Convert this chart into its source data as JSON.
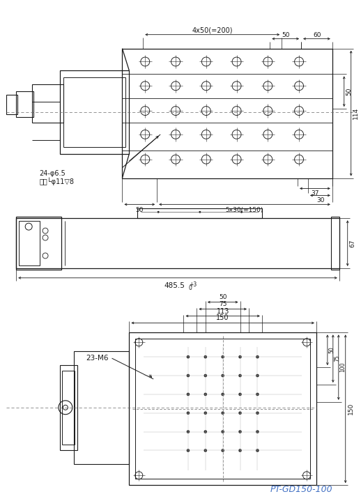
{
  "bg_color": "#ffffff",
  "line_color": "#1a1a1a",
  "model_color": "#4472c4",
  "model_text": "PT-GD150-100",
  "dim_4x50": "4x50(=200)",
  "dim_50a": "50",
  "dim_60": "60",
  "dim_114": "114",
  "dim_50b": "50",
  "dim_37": "37",
  "dim_30": "30",
  "dim_5x30": "5x30(=150)",
  "dim_50c": "50",
  "dim_hole": "24-φ6.5",
  "dim_back": "背面└φ11▽8",
  "dim_67": "67",
  "dim_485": "485.5",
  "dim_plus3": "+3",
  "dim_0": "0",
  "dim_150h": "150",
  "dim_113": "113",
  "dim_75h": "75",
  "dim_50h": "50",
  "dim_23m6": "23-M6",
  "dim_150v": "150",
  "dim_50v": "50",
  "dim_75v": "75",
  "dim_100v": "100"
}
